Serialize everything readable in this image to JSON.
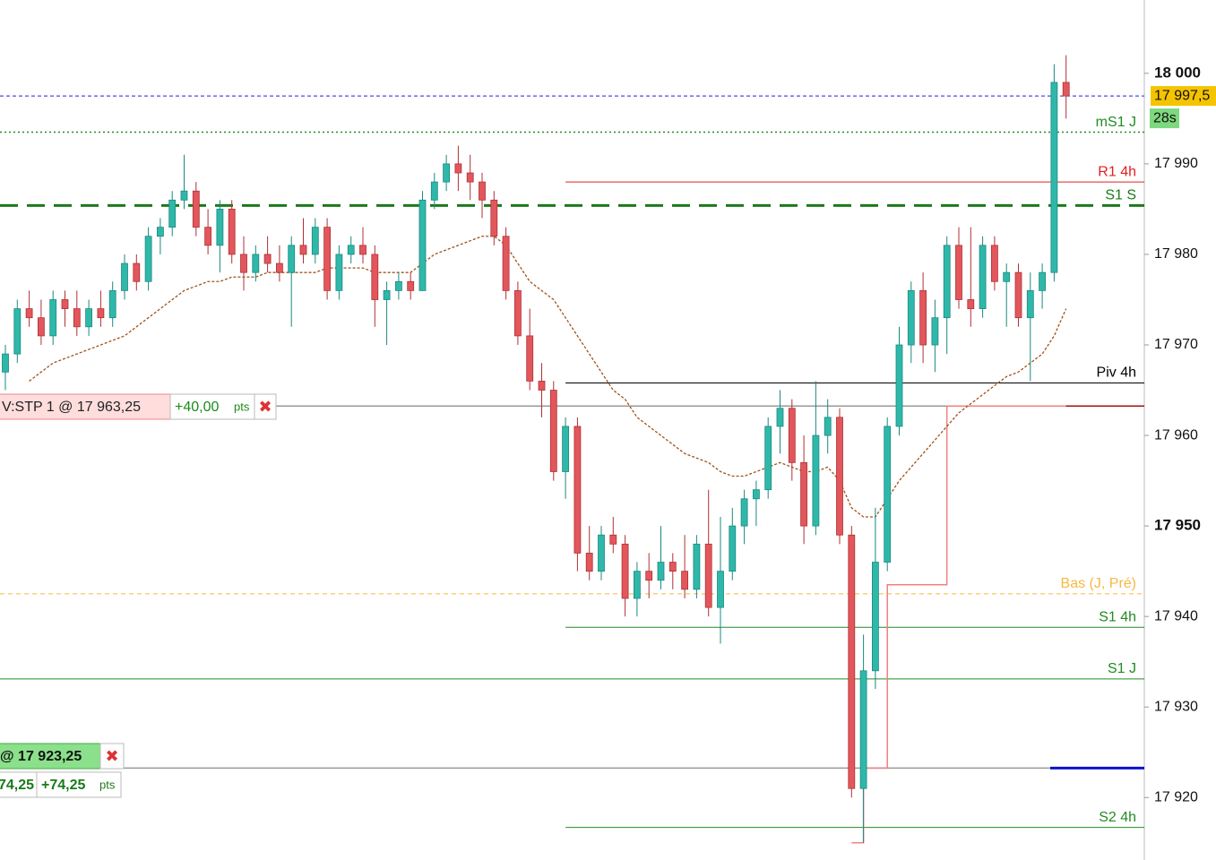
{
  "chart_data": {
    "type": "candlestick",
    "ylim": [
      17913.1,
      18008.1
    ],
    "yticks": [
      {
        "value": 18000,
        "label": "18 000",
        "bold": true
      },
      {
        "value": 17990,
        "label": "17 990"
      },
      {
        "value": 17980,
        "label": "17 980"
      },
      {
        "value": 17970,
        "label": "17 970"
      },
      {
        "value": 17960,
        "label": "17 960"
      },
      {
        "value": 17950,
        "label": "17 950",
        "bold": true
      },
      {
        "value": 17940,
        "label": "17 940"
      },
      {
        "value": 17930,
        "label": "17 930"
      },
      {
        "value": 17920,
        "label": "17 920"
      }
    ],
    "up_color": "#2fb8aa",
    "down_color": "#e2575c",
    "open": [
      17967,
      17969,
      17974,
      17973,
      17971,
      17975,
      17974,
      17972,
      17974,
      17973,
      17976,
      17979,
      17977,
      17982,
      17983,
      17986,
      17987,
      17983,
      17981,
      17985,
      17980,
      17978,
      17980,
      17979,
      17978,
      17981,
      17980,
      17983,
      17976,
      17980,
      17981,
      17980,
      17975,
      17976,
      17977,
      17976,
      17986,
      17988,
      17990,
      17989,
      17988,
      17986,
      17982,
      17976,
      17971,
      17966,
      17965,
      17956,
      17961,
      17947,
      17945,
      17949,
      17948,
      17942,
      17945,
      17944,
      17946,
      17945,
      17943,
      17948,
      17941,
      17945,
      17950,
      17953,
      17954,
      17961,
      17963,
      17957,
      17950,
      17960,
      17962,
      17949,
      17921,
      17934,
      17946,
      17961,
      17970,
      17976,
      17970,
      17973,
      17981,
      17975,
      17974,
      17981,
      17977,
      17978,
      17973,
      17976,
      17978,
      17999
    ],
    "high": [
      17970,
      17975,
      17976,
      17975,
      17976,
      17976,
      17976,
      17975,
      17976,
      17977,
      17980,
      17980,
      17983,
      17984,
      17987,
      17991,
      17988,
      17985,
      17986,
      17986,
      17982,
      17981,
      17982,
      17981,
      17982,
      17984,
      17984,
      17984,
      17981,
      17982,
      17983,
      17981,
      17977,
      17978,
      17978,
      17987,
      17989,
      17991,
      17992,
      17991,
      17989,
      17987,
      17983,
      17977,
      17974,
      17968,
      17966,
      17962,
      17962,
      17950,
      17950,
      17951,
      17949,
      17946,
      17947,
      17950,
      17947,
      17949,
      17949,
      17954,
      17951,
      17952,
      17954,
      17955,
      17962,
      17965,
      17964,
      17960,
      17966,
      17964,
      17963,
      17950,
      17938,
      17952,
      17962,
      17972,
      17977,
      17978,
      17975,
      17982,
      17983,
      17983,
      17982,
      17982,
      17979,
      17979,
      17978,
      17979,
      18001,
      18002
    ],
    "low": [
      17965,
      17968,
      17972,
      17970,
      17970,
      17972,
      17971,
      17971,
      17972,
      17972,
      17975,
      17976,
      17976,
      17980,
      17982,
      17985,
      17982,
      17980,
      17978,
      17979,
      17976,
      17977,
      17978,
      17977,
      17972,
      17979,
      17979,
      17975,
      17975,
      17979,
      17979,
      17972,
      17970,
      17975,
      17975,
      17976,
      17985,
      17987,
      17987,
      17986,
      17984,
      17981,
      17975,
      17970,
      17965,
      17962,
      17955,
      17953,
      17945,
      17944,
      17944,
      17947,
      17940,
      17940,
      17942,
      17943,
      17943,
      17942,
      17942,
      17940,
      17937,
      17944,
      17948,
      17950,
      17953,
      17958,
      17955,
      17948,
      17949,
      17958,
      17948,
      17920,
      17915,
      17932,
      17945,
      17960,
      17968,
      17968,
      17967,
      17969,
      17974,
      17972,
      17973,
      17976,
      17972,
      17972,
      17966,
      17974,
      17977,
      17995
    ],
    "close": [
      17969,
      17974,
      17973,
      17971,
      17975,
      17974,
      17972,
      17974,
      17973,
      17976,
      17979,
      17977,
      17982,
      17983,
      17986,
      17987,
      17983,
      17981,
      17985,
      17980,
      17978,
      17980,
      17979,
      17978,
      17981,
      17980,
      17983,
      17976,
      17980,
      17981,
      17980,
      17975,
      17976,
      17977,
      17976,
      17986,
      17988,
      17990,
      17989,
      17988,
      17986,
      17982,
      17976,
      17971,
      17966,
      17965,
      17956,
      17961,
      17947,
      17945,
      17949,
      17948,
      17942,
      17945,
      17944,
      17946,
      17945,
      17943,
      17948,
      17941,
      17945,
      17950,
      17953,
      17954,
      17961,
      17963,
      17957,
      17950,
      17960,
      17962,
      17949,
      17921,
      17934,
      17946,
      17961,
      17970,
      17976,
      17970,
      17973,
      17981,
      17975,
      17974,
      17981,
      17977,
      17978,
      17973,
      17976,
      17978,
      17999,
      17997.5
    ],
    "moving_average": {
      "color": "#a0521a",
      "values": [
        null,
        null,
        17966,
        17967,
        17968,
        17968.5,
        17969,
        17969.5,
        17970,
        17970.5,
        17971,
        17972,
        17973,
        17974,
        17975,
        17976,
        17976.5,
        17977,
        17977,
        17977.5,
        17977.5,
        17977.5,
        17978,
        17978,
        17978,
        17978,
        17978,
        17978.5,
        17978.5,
        17978.5,
        17978.5,
        17978,
        17978,
        17978,
        17978,
        17979,
        17980,
        17980.5,
        17981,
        17981.5,
        17982,
        17982,
        17981,
        17979,
        17977,
        17976,
        17975,
        17973,
        17971,
        17969,
        17967,
        17965,
        17964,
        17962,
        17961,
        17960,
        17959,
        17958,
        17957.5,
        17957,
        17956,
        17955.5,
        17955.5,
        17956,
        17956.5,
        17957,
        17956.5,
        17956,
        17956,
        17956.5,
        17955,
        17952,
        17951,
        17951,
        17953,
        17955,
        17956.5,
        17958,
        17959.5,
        17961,
        17962.5,
        17963.5,
        17964.5,
        17965.5,
        17966.5,
        17967,
        17968,
        17969,
        17971,
        17974
      ]
    },
    "stop_line": {
      "color": "#f08080",
      "values": [
        null,
        null,
        null,
        null,
        null,
        null,
        null,
        null,
        null,
        null,
        null,
        null,
        null,
        null,
        null,
        null,
        null,
        null,
        null,
        null,
        null,
        null,
        null,
        null,
        null,
        null,
        null,
        null,
        null,
        null,
        null,
        null,
        null,
        null,
        null,
        null,
        null,
        null,
        null,
        null,
        null,
        null,
        null,
        null,
        null,
        null,
        null,
        null,
        null,
        null,
        null,
        null,
        null,
        null,
        null,
        null,
        null,
        null,
        null,
        null,
        null,
        null,
        null,
        null,
        null,
        null,
        null,
        null,
        null,
        null,
        null,
        17915,
        17923.25,
        17923.25,
        17943.5,
        17943.5,
        17943.5,
        17943.5,
        17943.5,
        17963.25,
        17963.25,
        17963.25,
        17963.25,
        17963.25,
        17963.25,
        17963.25,
        17963.25,
        17963.25,
        17963.25,
        17963.25
      ]
    },
    "current_price": {
      "value": 17997.5,
      "label": "17 997,5",
      "color": "#2020e0"
    },
    "countdown": "28s",
    "levels": [
      {
        "name": "mS1 J",
        "value": 17993.5,
        "color": "#228b22",
        "style": "dotted",
        "from": 0
      },
      {
        "name": "R1 4h",
        "value": 17988,
        "color": "#e02020",
        "style": "solid",
        "from": 47
      },
      {
        "name": "S1 S",
        "value": 17985.4,
        "color": "#1a7a1a",
        "style": "dashed",
        "from": 0
      },
      {
        "name": "Piv 4h",
        "value": 17965.8,
        "color": "#000000",
        "style": "solid",
        "from": 47
      },
      {
        "name": "Bas (J, Pré)",
        "value": 17942.5,
        "color": "#f5b942",
        "style": "dashed-thin",
        "from": 0
      },
      {
        "name": "S1 4h",
        "value": 17938.8,
        "color": "#228b22",
        "style": "solid",
        "from": 47
      },
      {
        "name": "S1 J",
        "value": 17933.1,
        "color": "#228b22",
        "style": "solid",
        "from": 0
      },
      {
        "name": "S2 4h",
        "value": 17916.7,
        "color": "#228b22",
        "style": "solid",
        "from": 47
      }
    ],
    "orders": [
      {
        "label": "V:STP  1  @  17 963,25",
        "price": 17963.25,
        "pnl": "+40,00",
        "unit": "pts",
        "end_color": "#a01010"
      },
      {
        "label": "@  17 923,25",
        "price": 17923.25,
        "pnl_left": "74,25",
        "pnl": "+74,25",
        "unit": "pts",
        "end_color": "#1010d0"
      }
    ]
  }
}
